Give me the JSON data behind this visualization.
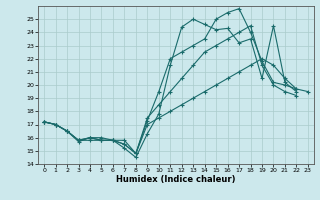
{
  "xlabel": "Humidex (Indice chaleur)",
  "background_color": "#cce8ec",
  "grid_color": "#aacccc",
  "line_color": "#1a6b6b",
  "xlim": [
    -0.5,
    23.5
  ],
  "ylim": [
    14,
    26
  ],
  "yticks": [
    14,
    15,
    16,
    17,
    18,
    19,
    20,
    21,
    22,
    23,
    24,
    25
  ],
  "xticks": [
    0,
    1,
    2,
    3,
    4,
    5,
    6,
    7,
    8,
    9,
    10,
    11,
    12,
    13,
    14,
    15,
    16,
    17,
    18,
    19,
    20,
    21,
    22,
    23
  ],
  "series": [
    [
      17.2,
      17.0,
      16.5,
      15.7,
      16.0,
      16.0,
      15.8,
      15.2,
      14.5,
      16.3,
      17.8,
      21.5,
      24.4,
      25.0,
      24.6,
      24.2,
      24.3,
      23.2,
      23.5,
      20.5,
      24.5,
      20.2,
      19.5,
      null
    ],
    [
      17.2,
      17.0,
      16.5,
      15.8,
      15.8,
      15.8,
      15.8,
      15.8,
      14.8,
      17.3,
      19.5,
      22.0,
      22.5,
      23.0,
      23.5,
      25.0,
      25.5,
      25.8,
      24.0,
      21.8,
      20.2,
      20.0,
      19.7,
      null
    ],
    [
      17.2,
      17.0,
      16.5,
      15.8,
      16.0,
      15.8,
      15.8,
      15.5,
      14.8,
      17.5,
      18.5,
      19.5,
      20.5,
      21.5,
      22.5,
      23.0,
      23.5,
      24.0,
      24.5,
      21.5,
      20.0,
      19.5,
      19.2,
      null
    ],
    [
      17.2,
      17.0,
      16.5,
      15.8,
      16.0,
      15.8,
      15.8,
      15.5,
      14.8,
      17.0,
      17.5,
      18.0,
      18.5,
      19.0,
      19.5,
      20.0,
      20.5,
      21.0,
      21.5,
      22.0,
      21.5,
      20.5,
      19.7,
      19.5
    ]
  ]
}
